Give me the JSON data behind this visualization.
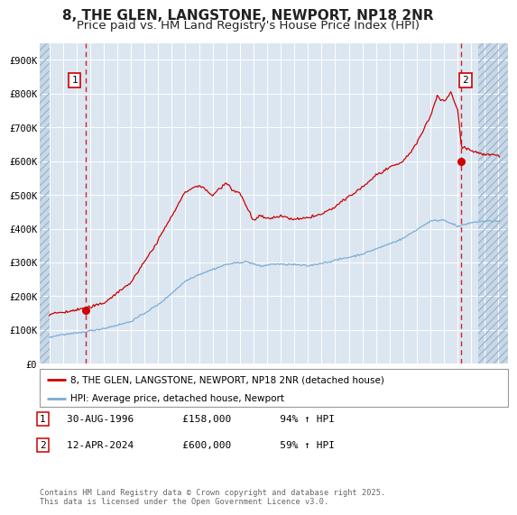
{
  "title": "8, THE GLEN, LANGSTONE, NEWPORT, NP18 2NR",
  "subtitle": "Price paid vs. HM Land Registry's House Price Index (HPI)",
  "ylim": [
    0,
    950000
  ],
  "yticks": [
    0,
    100000,
    200000,
    300000,
    400000,
    500000,
    600000,
    700000,
    800000,
    900000
  ],
  "ytick_labels": [
    "£0",
    "£100K",
    "£200K",
    "£300K",
    "£400K",
    "£500K",
    "£600K",
    "£700K",
    "£800K",
    "£900K"
  ],
  "xlim_start": 1993.3,
  "xlim_end": 2027.7,
  "hatch_left_end": 1994.0,
  "hatch_right_start": 2025.5,
  "background_color": "#ffffff",
  "plot_bg_color": "#dce6f1",
  "hatch_bg_color": "#c8d8e8",
  "grid_color": "#ffffff",
  "red_line_color": "#cc0000",
  "blue_line_color": "#7aadd4",
  "point1_date": 1996.66,
  "point1_price": 158000,
  "point2_date": 2024.28,
  "point2_price": 600000,
  "legend_label1": "8, THE GLEN, LANGSTONE, NEWPORT, NP18 2NR (detached house)",
  "legend_label2": "HPI: Average price, detached house, Newport",
  "footer": "Contains HM Land Registry data © Crown copyright and database right 2025.\nThis data is licensed under the Open Government Licence v3.0.",
  "title_fontsize": 11,
  "subtitle_fontsize": 9.5
}
